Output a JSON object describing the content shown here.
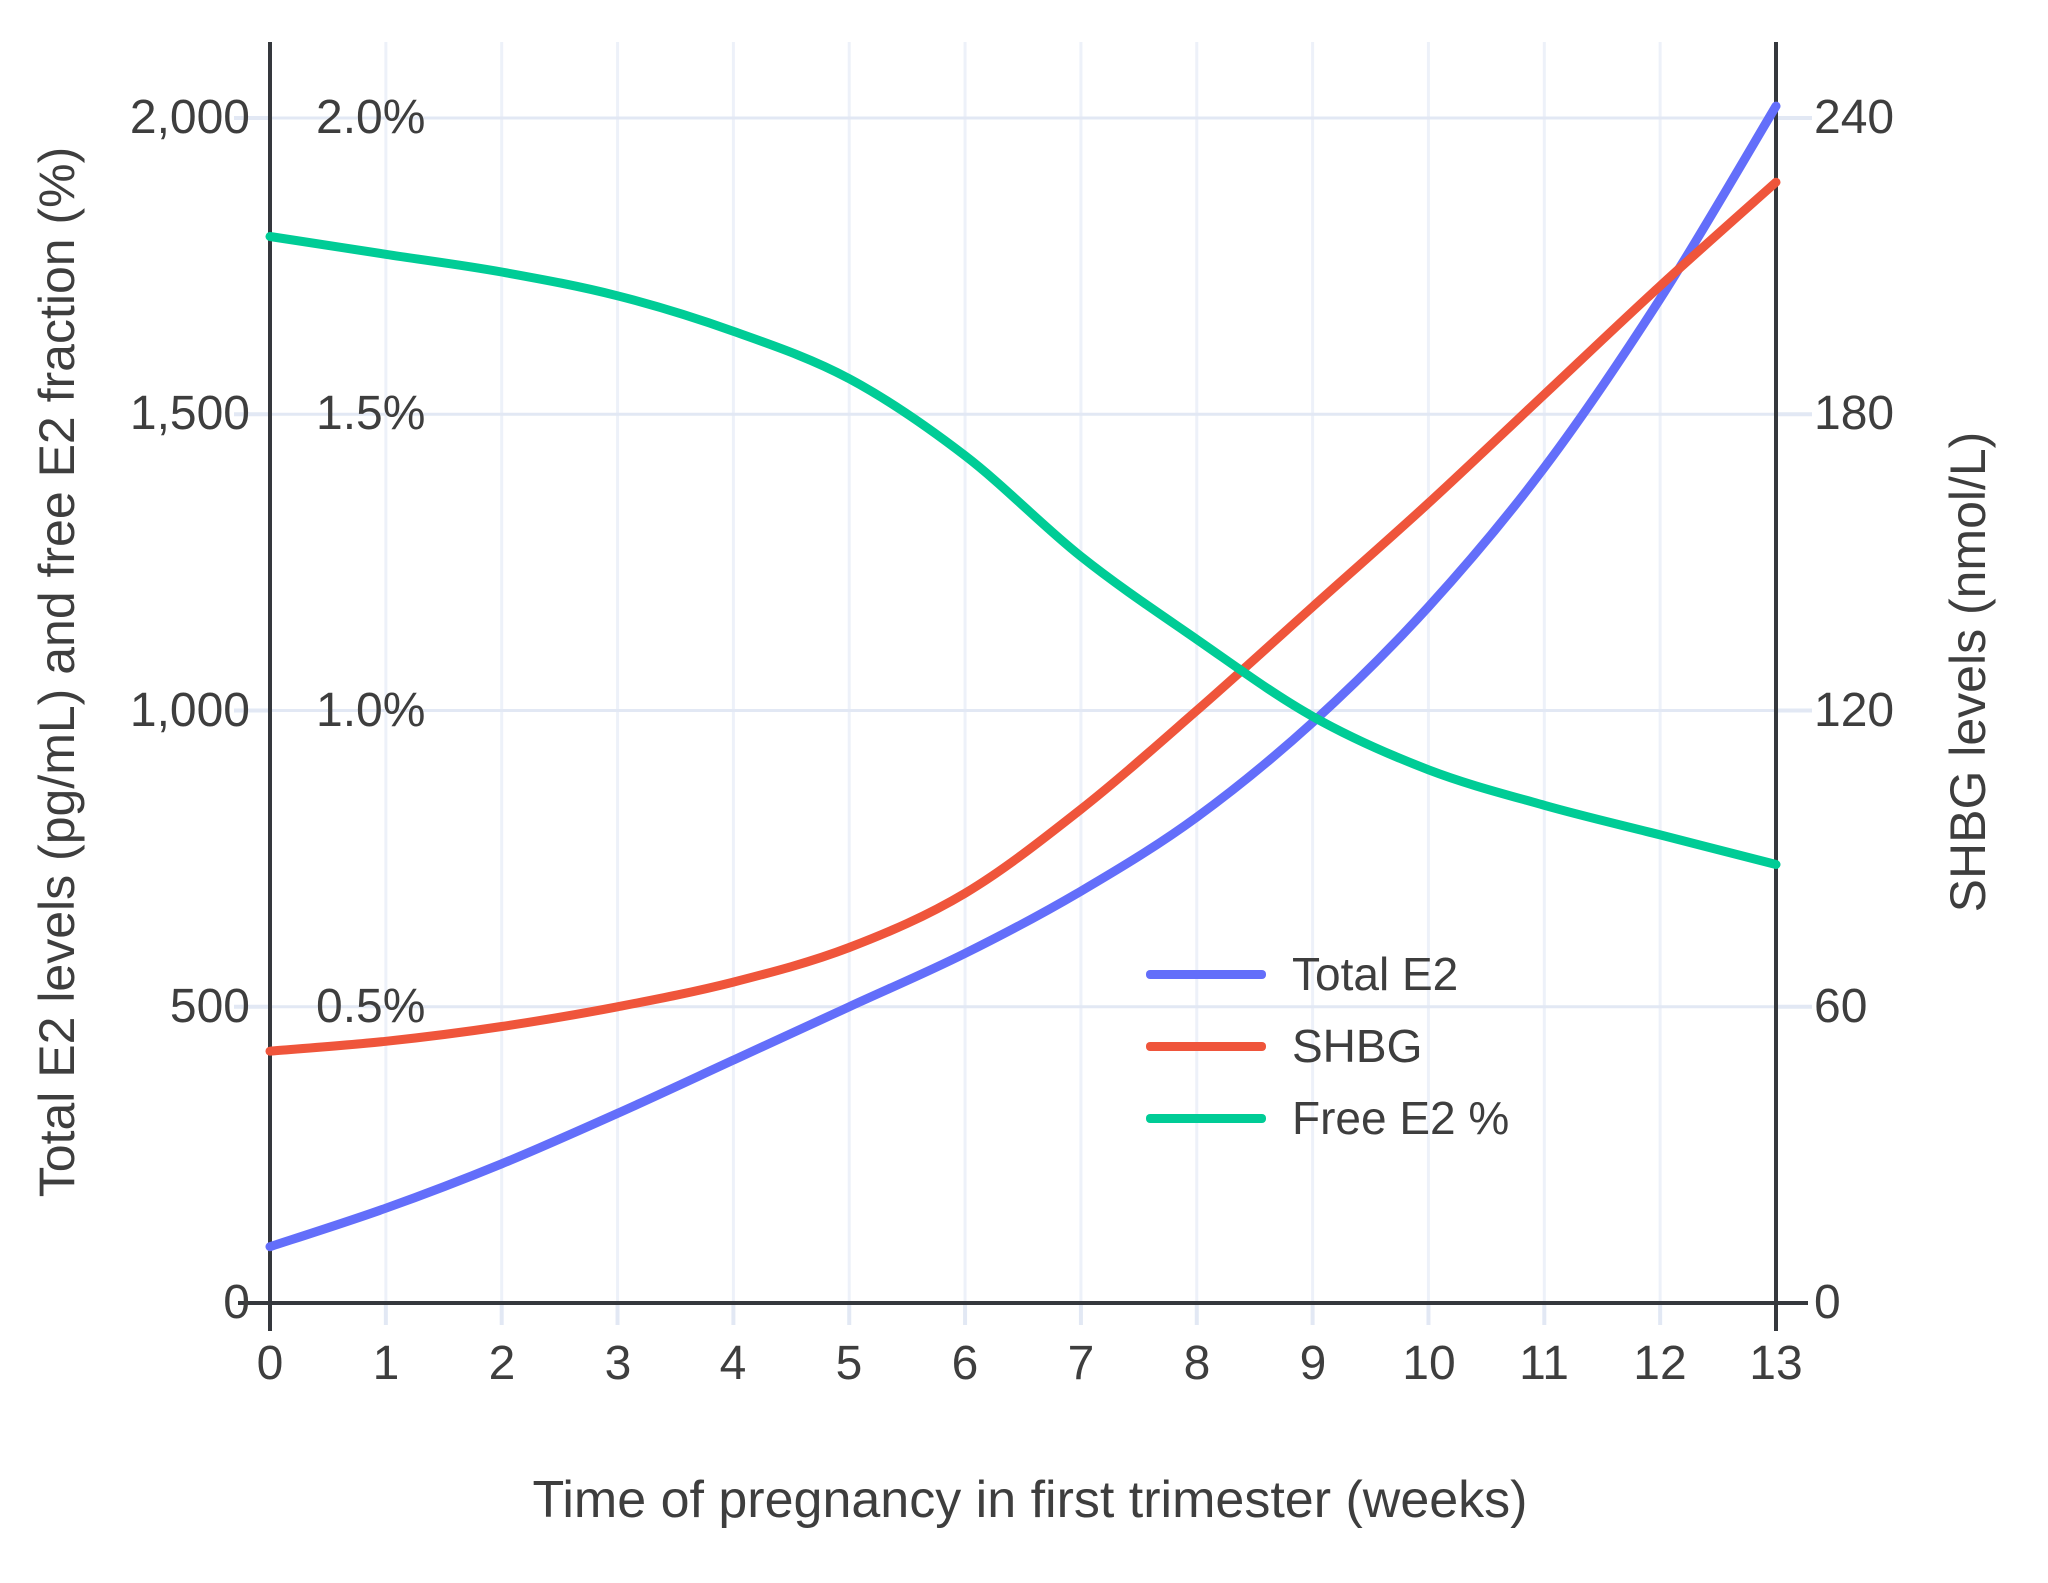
{
  "chart_data": {
    "type": "line",
    "title": "",
    "xlabel": "Time of pregnancy in first trimester (weeks)",
    "x": [
      0,
      1,
      2,
      3,
      4,
      5,
      6,
      7,
      8,
      9,
      10,
      11,
      12,
      13
    ],
    "x_ticks": [
      "0",
      "1",
      "2",
      "3",
      "4",
      "5",
      "6",
      "7",
      "8",
      "9",
      "10",
      "11",
      "12",
      "13"
    ],
    "yaxis_left": {
      "title": "Total E2 levels (pg/mL) and free E2 fraction (%)",
      "range": [
        0,
        2130
      ],
      "ticks": [
        {
          "value": 0,
          "label": "0"
        },
        {
          "value": 500,
          "label": "500"
        },
        {
          "value": 1000,
          "label": "1,000"
        },
        {
          "value": 1500,
          "label": "1,500"
        },
        {
          "value": 2000,
          "label": "2,000"
        }
      ],
      "percent_labels": [
        {
          "value": 2000,
          "label": "2.0%"
        },
        {
          "value": 1500,
          "label": "1.5%"
        },
        {
          "value": 1000,
          "label": "1.0%"
        },
        {
          "value": 500,
          "label": "0.5%"
        }
      ]
    },
    "yaxis_right": {
      "title": "SHBG levels (nmol/L)",
      "range": [
        0,
        255
      ],
      "ticks": [
        {
          "value": 0,
          "label": "0"
        },
        {
          "value": 60,
          "label": "60"
        },
        {
          "value": 120,
          "label": "120"
        },
        {
          "value": 180,
          "label": "180"
        },
        {
          "value": 240,
          "label": "240"
        }
      ]
    },
    "series": [
      {
        "name": "Total E2",
        "axis": "left",
        "unit": "pg/mL",
        "color": "#636EFA",
        "values": [
          95,
          160,
          235,
          320,
          410,
          500,
          590,
          695,
          820,
          980,
          1175,
          1410,
          1695,
          2020
        ]
      },
      {
        "name": "SHBG",
        "axis": "right",
        "unit": "nmol/L",
        "color": "#EF553B",
        "values": [
          51,
          53,
          56,
          60,
          65,
          72,
          83,
          100,
          120,
          141,
          162,
          184,
          206,
          227
        ]
      },
      {
        "name": "Free E2 %",
        "axis": "left-percent",
        "unit": "%",
        "color": "#00CC96",
        "values": [
          1.8,
          1.77,
          1.74,
          1.7,
          1.64,
          1.56,
          1.43,
          1.26,
          1.12,
          0.99,
          0.9,
          0.84,
          0.79,
          0.74
        ]
      }
    ],
    "legend": {
      "position": "inside-right",
      "entries": [
        "Total E2",
        "SHBG",
        "Free E2 %"
      ]
    },
    "grid": true
  },
  "colors": {
    "background": "#ffffff",
    "axis_line": "#35383d",
    "grid_horizontal": "#e2e8f4",
    "grid_vertical": "#edf1f9",
    "text": "#3e3e3e"
  }
}
